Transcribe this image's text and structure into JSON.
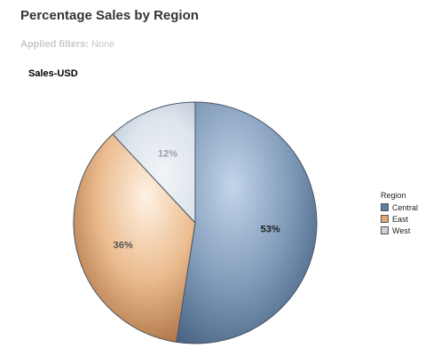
{
  "header": {
    "title": "Percentage Sales by Region",
    "filters_label": "Applied filters:",
    "filters_value": "None"
  },
  "chart_data": {
    "type": "pie",
    "title": "Sales-USD",
    "legend_title": "Region",
    "legend_position": "right",
    "categories": [
      "Central",
      "East",
      "West"
    ],
    "values": [
      53,
      36,
      12
    ],
    "labels": [
      "53%",
      "36%",
      "12%"
    ],
    "colors": [
      "#5e7da0",
      "#e1a878",
      "#c9d3de"
    ]
  }
}
